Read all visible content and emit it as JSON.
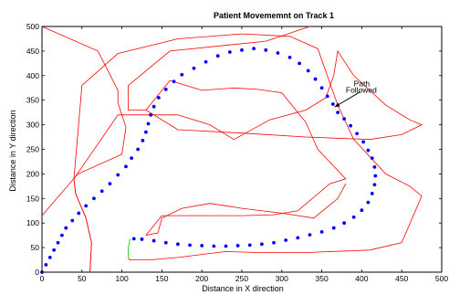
{
  "chart_data": {
    "type": "scatter",
    "title": "Patient Movememnt on Track 1",
    "xlabel": "Distance in X direction",
    "ylabel": "Distance in Y direction",
    "xlim": [
      0,
      500
    ],
    "ylim": [
      0,
      500
    ],
    "xticks": [
      0,
      50,
      100,
      150,
      200,
      250,
      300,
      350,
      400,
      450,
      500
    ],
    "yticks": [
      0,
      50,
      100,
      150,
      200,
      250,
      300,
      350,
      400,
      450,
      500
    ],
    "grid": false,
    "colors": {
      "boundary": "#ff0000",
      "path": "#0000ff",
      "start_marker": "#00cc00",
      "annotation": "#000000"
    },
    "series": [
      {
        "style": "red-line",
        "x": [
          0,
          45,
          100,
          105,
          95,
          95,
          70,
          0
        ],
        "y": [
          115,
          200,
          240,
          295,
          345,
          370,
          450,
          500
        ]
      },
      {
        "style": "red-line",
        "x": [
          60,
          62,
          55,
          42,
          40,
          95,
          170,
          210,
          240,
          285,
          330,
          355,
          365,
          370,
          390,
          430,
          460,
          475,
          450,
          410,
          330,
          250,
          170,
          130,
          108,
          108,
          160,
          280,
          335
        ],
        "y": [
          0,
          60,
          110,
          160,
          190,
          320,
          320,
          300,
          270,
          310,
          330,
          355,
          400,
          450,
          400,
          340,
          310,
          300,
          280,
          270,
          275,
          283,
          290,
          330,
          330,
          380,
          450,
          470,
          500
        ]
      },
      {
        "style": "red-line",
        "x": [
          60,
          62,
          55,
          42,
          40,
          50,
          95,
          170,
          250,
          310,
          345,
          370,
          390,
          430,
          460,
          475,
          450,
          410,
          330,
          270,
          230,
          170,
          135,
          110,
          108
        ],
        "y": [
          0,
          60,
          110,
          160,
          190,
          380,
          445,
          475,
          485,
          480,
          455,
          340,
          270,
          200,
          175,
          155,
          60,
          45,
          40,
          40,
          42,
          30,
          25,
          25,
          28
        ]
      },
      {
        "style": "red-line",
        "x": [
          130,
          150,
          175,
          200,
          250,
          290,
          320,
          360,
          380,
          345,
          330,
          300,
          270,
          240,
          200,
          160,
          130
        ],
        "y": [
          75,
          115,
          115,
          115,
          115,
          117,
          125,
          180,
          190,
          250,
          305,
          365,
          372,
          375,
          370,
          390,
          330
        ]
      },
      {
        "style": "red-line",
        "x": [
          130,
          145,
          150,
          175,
          210,
          250,
          300,
          340,
          355,
          370,
          380
        ],
        "y": [
          75,
          80,
          110,
          130,
          140,
          130,
          120,
          110,
          130,
          150,
          180
        ]
      },
      {
        "name": "Path Followed",
        "style": "blue-dots",
        "x": [
          0,
          5,
          10,
          15,
          20,
          25,
          30,
          38,
          46,
          55,
          65,
          75,
          85,
          95,
          105,
          112,
          120,
          126,
          130,
          133,
          136,
          140,
          146,
          155,
          165,
          175,
          190,
          205,
          220,
          235,
          250,
          265,
          280,
          295,
          310,
          322,
          333,
          342,
          350,
          357,
          364,
          370,
          378,
          386,
          394,
          402,
          408,
          413,
          416,
          417,
          416,
          413,
          408,
          400,
          390,
          378,
          365,
          350,
          335,
          320,
          305,
          290,
          275,
          260,
          245,
          230,
          215,
          200,
          185,
          170,
          155,
          140,
          125,
          115
        ],
        "y": [
          0,
          15,
          30,
          45,
          60,
          75,
          90,
          105,
          120,
          135,
          150,
          165,
          180,
          198,
          215,
          232,
          250,
          268,
          285,
          302,
          320,
          337,
          355,
          372,
          388,
          402,
          415,
          428,
          440,
          448,
          452,
          455,
          452,
          446,
          437,
          425,
          410,
          393,
          375,
          358,
          342,
          325,
          312,
          298,
          282,
          265,
          248,
          232,
          214,
          196,
          178,
          160,
          142,
          126,
          112,
          100,
          90,
          82,
          76,
          70,
          65,
          60,
          57,
          55,
          54,
          53,
          53,
          54,
          55,
          57,
          60,
          64,
          67,
          68
        ]
      },
      {
        "style": "green-line",
        "x": [
          108,
          108,
          110
        ],
        "y": [
          28,
          50,
          68
        ]
      }
    ],
    "annotations": [
      {
        "text": "Path",
        "x": 390,
        "y": 378
      },
      {
        "text": "Followed",
        "x": 380,
        "y": 365
      }
    ]
  }
}
